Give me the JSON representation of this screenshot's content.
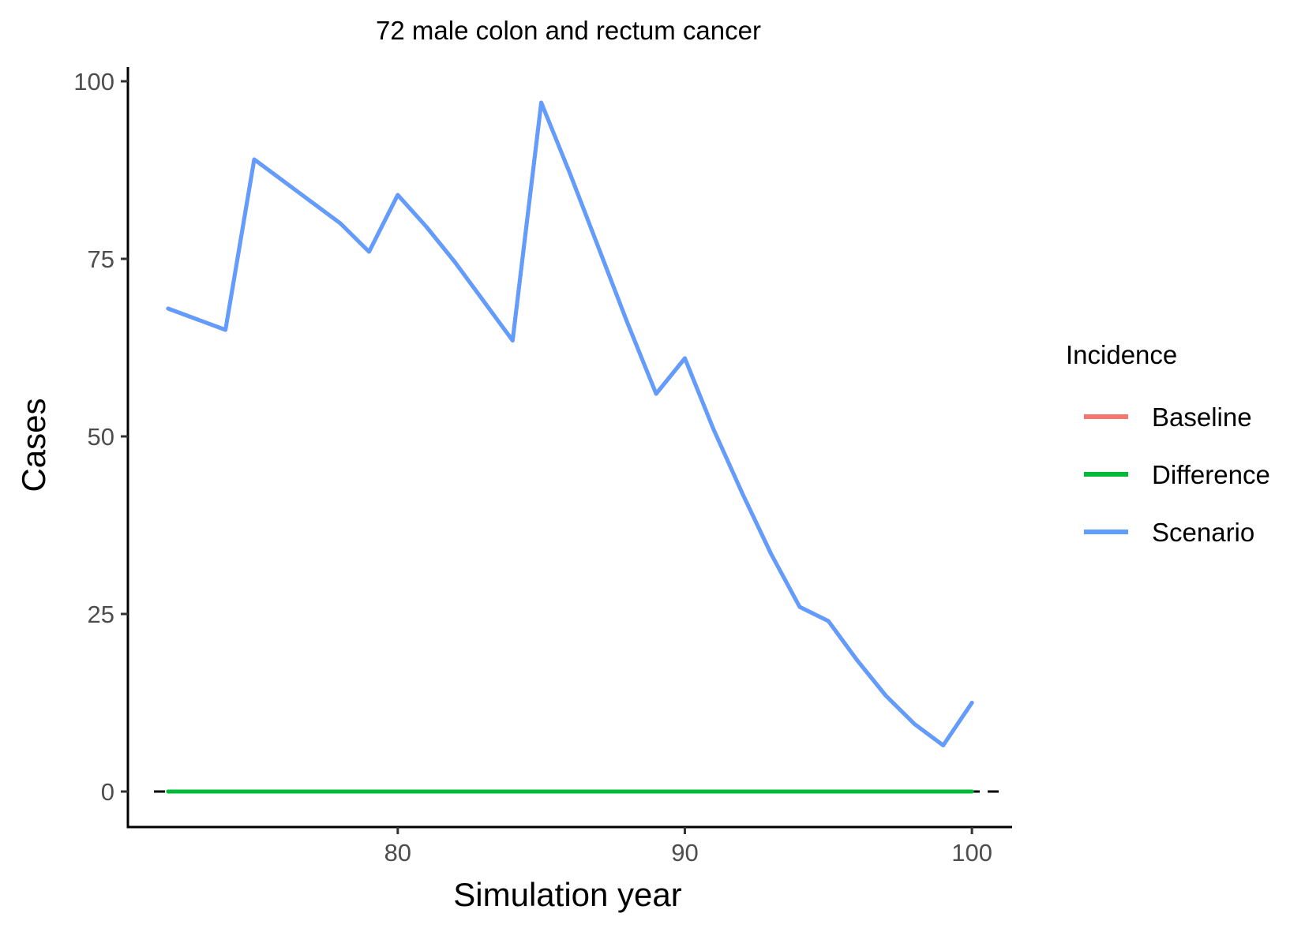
{
  "chart_data": {
    "type": "line",
    "title": "72 male colon and rectum cancer",
    "xlabel": "Simulation year",
    "ylabel": "Cases",
    "xlim": [
      70.6,
      101.4
    ],
    "ylim": [
      -5,
      102
    ],
    "xticks": [
      80,
      90,
      100
    ],
    "yticks": [
      0,
      25,
      50,
      75,
      100
    ],
    "grid": false,
    "reference_line": {
      "y": 0,
      "style": "dashed",
      "color": "#000000"
    },
    "legend": {
      "title": "Incidence",
      "position": "right",
      "entries": [
        "Baseline",
        "Difference",
        "Scenario"
      ]
    },
    "x": [
      72,
      73,
      74,
      75,
      76,
      77,
      78,
      79,
      80,
      81,
      82,
      83,
      84,
      85,
      86,
      87,
      88,
      89,
      90,
      91,
      92,
      93,
      94,
      95,
      96,
      97,
      98,
      99,
      100
    ],
    "series": [
      {
        "name": "Baseline",
        "color": "#F8766D",
        "values": [
          68,
          66.5,
          65,
          89,
          86,
          83,
          80,
          76,
          84,
          79.5,
          74.5,
          69,
          63.5,
          97,
          87,
          76.5,
          66,
          56,
          61,
          51,
          42,
          33.5,
          26,
          24,
          18.5,
          13.5,
          9.5,
          6.5,
          12.5
        ]
      },
      {
        "name": "Difference",
        "color": "#00BA38",
        "values": [
          0,
          0,
          0,
          0,
          0,
          0,
          0,
          0,
          0,
          0,
          0,
          0,
          0,
          0,
          0,
          0,
          0,
          0,
          0,
          0,
          0,
          0,
          0,
          0,
          0,
          0,
          0,
          0,
          0
        ]
      },
      {
        "name": "Scenario",
        "color": "#619CFF",
        "values": [
          68,
          66.5,
          65,
          89,
          86,
          83,
          80,
          76,
          84,
          79.5,
          74.5,
          69,
          63.5,
          97,
          87,
          76.5,
          66,
          56,
          61,
          51,
          42,
          33.5,
          26,
          24,
          18.5,
          13.5,
          9.5,
          6.5,
          12.5
        ]
      }
    ]
  }
}
